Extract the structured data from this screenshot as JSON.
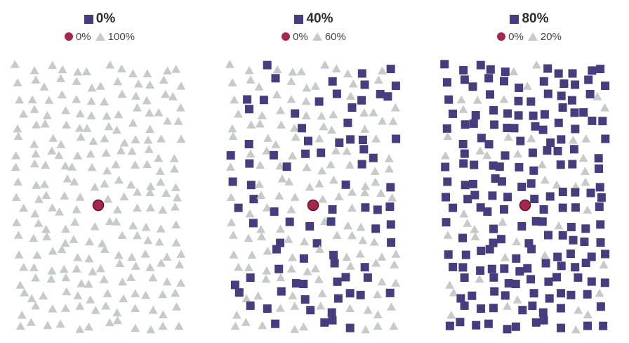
{
  "colors": {
    "square": "#463d7e",
    "triangle": "#c5cbc7",
    "center": "#a3284b",
    "center_stroke": "#5a1528"
  },
  "chart_data": [
    {
      "type": "scatter",
      "title": "0%",
      "legend": [
        {
          "shape": "circle",
          "label": "0%"
        },
        {
          "shape": "triangle",
          "label": "100%"
        }
      ],
      "square_fraction": 0.0,
      "center_marker": "circle"
    },
    {
      "type": "scatter",
      "title": "40%",
      "legend": [
        {
          "shape": "circle",
          "label": "0%"
        },
        {
          "shape": "triangle",
          "label": "60%"
        }
      ],
      "square_fraction": 0.4,
      "center_marker": "circle"
    },
    {
      "type": "scatter",
      "title": "80%",
      "legend": [
        {
          "shape": "circle",
          "label": "0%"
        },
        {
          "shape": "triangle",
          "label": "20%"
        }
      ],
      "square_fraction": 0.8,
      "center_marker": "circle"
    }
  ]
}
